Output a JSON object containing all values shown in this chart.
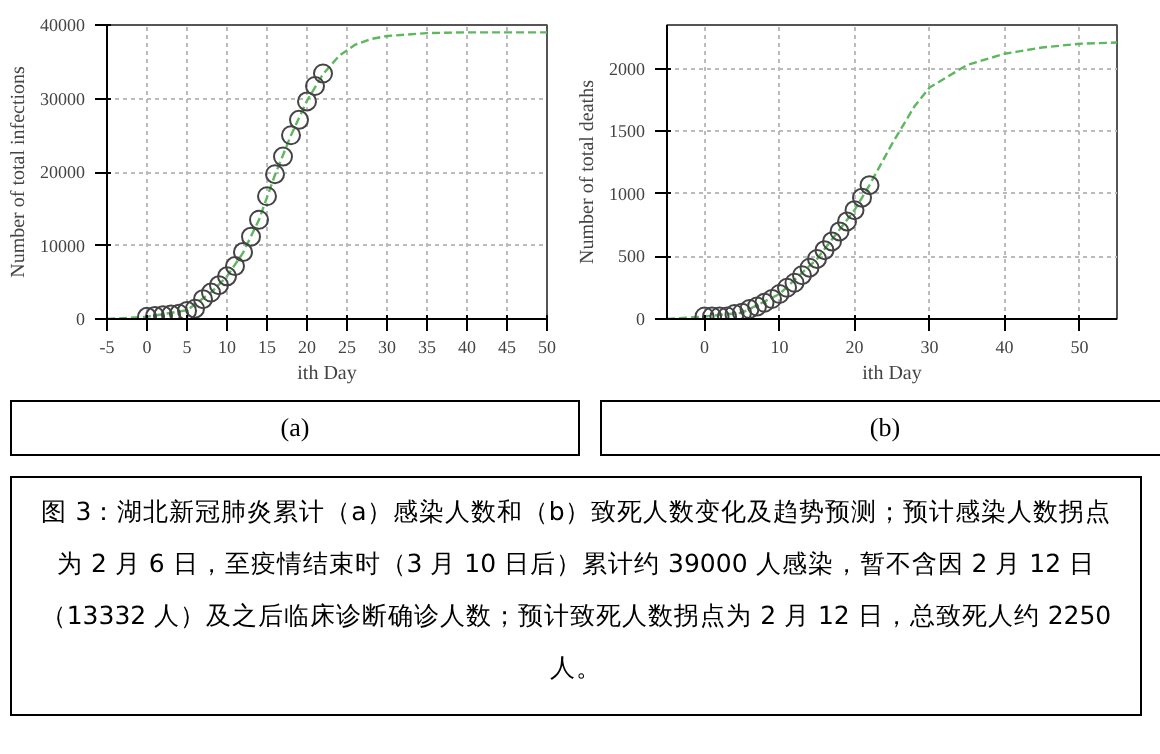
{
  "chart_data": [
    {
      "type": "scatter",
      "xlabel": "ith Day",
      "ylabel": "Number of total infections",
      "xlim": [
        -5,
        50
      ],
      "ylim": [
        0,
        40000
      ],
      "xticks": [
        -5,
        0,
        5,
        10,
        15,
        20,
        25,
        30,
        35,
        40,
        45,
        50
      ],
      "yticks": [
        0,
        10000,
        20000,
        30000,
        40000
      ],
      "grid": true,
      "annotations": [
        "(a)"
      ],
      "series": [
        {
          "type": "line",
          "line_style": "dashed",
          "color": "#5cb85c",
          "x": [
            -5,
            0,
            5,
            8,
            10,
            12,
            14,
            16,
            18,
            20,
            22,
            24,
            26,
            28,
            30,
            35,
            40,
            45,
            50
          ],
          "values": [
            0,
            300,
            1200,
            3600,
            5800,
            9000,
            13500,
            19600,
            25000,
            29700,
            33300,
            35800,
            37300,
            38100,
            38500,
            38900,
            39000,
            39000,
            39000
          ]
        },
        {
          "marker": "circle",
          "color": "#444444",
          "x": [
            0,
            1,
            2,
            3,
            4,
            5,
            6,
            7,
            8,
            9,
            10,
            11,
            12,
            13,
            14,
            15,
            16,
            17,
            18,
            19,
            20,
            21,
            22
          ],
          "values": [
            300,
            400,
            500,
            600,
            700,
            1100,
            1400,
            2700,
            3600,
            4600,
            5800,
            7200,
            9100,
            11200,
            13500,
            16700,
            19700,
            22100,
            25000,
            27100,
            29600,
            31700,
            33400
          ]
        }
      ]
    },
    {
      "type": "scatter",
      "xlabel": "ith Day",
      "ylabel": "Number of total deaths",
      "xlim": [
        -5,
        55
      ],
      "ylim": [
        0,
        2350
      ],
      "xticks": [
        0,
        10,
        20,
        30,
        40,
        50
      ],
      "yticks": [
        0,
        500,
        1000,
        1500,
        2000
      ],
      "grid": true,
      "annotations": [
        "(b)",
        "图 3：湖北新冠肺炎累计（a）感染人数和（b）致死人数变化及趋势预测；预计感染人数拐点为 2 月 6 日，至疫情结束时（3 月 10 日后）累计约 39000 人感染，暂不含因 2 月 12 日（13332 人）及之后临床诊断确诊人数；预计致死人数拐点为 2 月 12 日，总致死人约 2250 人。"
      ],
      "series": [
        {
          "type": "line",
          "line_style": "dashed",
          "color": "#5cb85c",
          "x": [
            -5,
            0,
            5,
            10,
            15,
            20,
            22,
            25,
            28,
            30,
            35,
            40,
            45,
            50,
            55
          ],
          "values": [
            0,
            20,
            50,
            200,
            480,
            870,
            1070,
            1400,
            1700,
            1850,
            2030,
            2120,
            2170,
            2200,
            2210
          ]
        },
        {
          "marker": "circle",
          "color": "#444444",
          "x": [
            0,
            1,
            2,
            3,
            4,
            5,
            6,
            7,
            8,
            9,
            10,
            11,
            12,
            13,
            14,
            15,
            16,
            17,
            18,
            19,
            20,
            21,
            22
          ],
          "values": [
            20,
            20,
            20,
            20,
            40,
            50,
            80,
            100,
            130,
            160,
            200,
            250,
            290,
            350,
            410,
            480,
            550,
            620,
            700,
            780,
            870,
            970,
            1070
          ]
        }
      ]
    }
  ]
}
